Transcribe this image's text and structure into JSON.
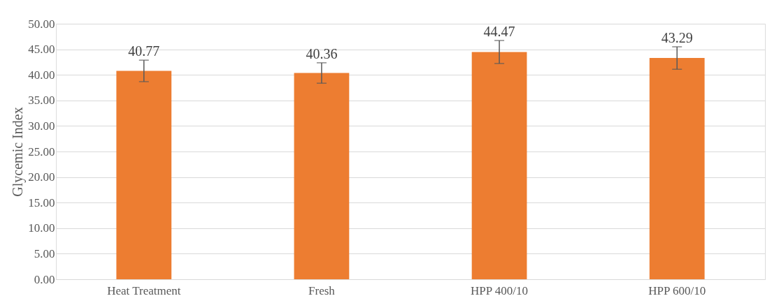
{
  "chart_data": {
    "type": "bar",
    "ylabel": "Glycemic Index",
    "categories": [
      "Heat Treatment",
      "Fresh",
      "HPP 400/10",
      "HPP 600/10"
    ],
    "values": [
      40.77,
      40.36,
      44.47,
      43.29
    ],
    "errors": [
      2.1,
      2.0,
      2.25,
      2.2
    ],
    "color": "#ed7d31",
    "ylim": [
      0,
      50
    ],
    "yticks": [
      {
        "value": 0,
        "label": "0.00"
      },
      {
        "value": 5,
        "label": "5.00"
      },
      {
        "value": 10,
        "label": "10.00"
      },
      {
        "value": 15,
        "label": "15.00"
      },
      {
        "value": 20,
        "label": "20.00"
      },
      {
        "value": 25,
        "label": "25.00"
      },
      {
        "value": 30,
        "label": "30.00"
      },
      {
        "value": 35,
        "label": "35.00"
      },
      {
        "value": 40,
        "label": "40.00"
      },
      {
        "value": 45,
        "label": "45.00"
      },
      {
        "value": 50,
        "label": "50.00"
      }
    ],
    "data_labels": true,
    "grid": "y"
  }
}
